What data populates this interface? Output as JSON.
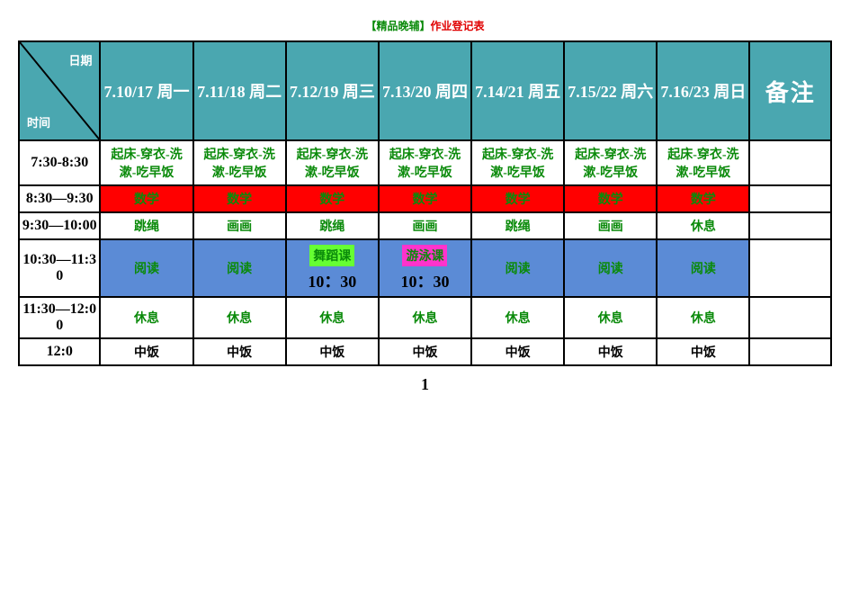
{
  "title_prefix": "【精品晚辅】",
  "title_suffix": "作业登记表",
  "title_prefix_color": "#0a8a0a",
  "title_suffix_color": "#e00000",
  "page_number": "1",
  "colors": {
    "header_bg": "#4aa7b0",
    "header_fg": "#ffffff",
    "border": "#000000",
    "green_text": "#0a8a0a",
    "red_bg": "#ff0000",
    "blue_bg": "#5b8bd6",
    "lime_bg": "#66ff33",
    "magenta_bg": "#ff33cc",
    "white": "#ffffff",
    "black": "#000000"
  },
  "corner": {
    "top": "日期",
    "bottom": "时间"
  },
  "day_headers": [
    "7.10/17 周一",
    "7.11/18 周二",
    "7.12/19 周三",
    "7.13/20 周四",
    "7.14/21 周五",
    "7.15/22 周六",
    "7.16/23 周日"
  ],
  "notes_header": "备注",
  "rows": [
    {
      "time": "7:30-8:30",
      "cells": [
        {
          "text": "起床-穿衣-洗漱-吃早饭",
          "bg": "#ffffff",
          "fg": "#0a8a0a"
        },
        {
          "text": "起床-穿衣-洗漱-吃早饭",
          "bg": "#ffffff",
          "fg": "#0a8a0a"
        },
        {
          "text": "起床-穿衣-洗漱-吃早饭",
          "bg": "#ffffff",
          "fg": "#0a8a0a"
        },
        {
          "text": "起床-穿衣-洗漱-吃早饭",
          "bg": "#ffffff",
          "fg": "#0a8a0a"
        },
        {
          "text": "起床-穿衣-洗漱-吃早饭",
          "bg": "#ffffff",
          "fg": "#0a8a0a"
        },
        {
          "text": "起床-穿衣-洗漱-吃早饭",
          "bg": "#ffffff",
          "fg": "#0a8a0a"
        },
        {
          "text": "起床-穿衣-洗漱-吃早饭",
          "bg": "#ffffff",
          "fg": "#0a8a0a"
        }
      ]
    },
    {
      "time": "8:30—9:30",
      "cells": [
        {
          "text": "数学",
          "bg": "#ff0000",
          "fg": "#0a8a0a"
        },
        {
          "text": "数学",
          "bg": "#ff0000",
          "fg": "#0a8a0a"
        },
        {
          "text": "数学",
          "bg": "#ff0000",
          "fg": "#0a8a0a"
        },
        {
          "text": "数学",
          "bg": "#ff0000",
          "fg": "#0a8a0a"
        },
        {
          "text": "数学",
          "bg": "#ff0000",
          "fg": "#0a8a0a"
        },
        {
          "text": "数学",
          "bg": "#ff0000",
          "fg": "#0a8a0a"
        },
        {
          "text": "数学",
          "bg": "#ff0000",
          "fg": "#0a8a0a"
        }
      ]
    },
    {
      "time": "9:30—10:00",
      "cells": [
        {
          "text": "跳绳",
          "bg": "#ffffff",
          "fg": "#0a8a0a"
        },
        {
          "text": "画画",
          "bg": "#ffffff",
          "fg": "#0a8a0a"
        },
        {
          "text": "跳绳",
          "bg": "#ffffff",
          "fg": "#0a8a0a"
        },
        {
          "text": "画画",
          "bg": "#ffffff",
          "fg": "#0a8a0a"
        },
        {
          "text": "跳绳",
          "bg": "#ffffff",
          "fg": "#0a8a0a"
        },
        {
          "text": "画画",
          "bg": "#ffffff",
          "fg": "#0a8a0a"
        },
        {
          "text": "休息",
          "bg": "#ffffff",
          "fg": "#0a8a0a"
        }
      ]
    },
    {
      "time": "10:30—11:30",
      "cells": [
        {
          "text": "阅读",
          "bg": "#5b8bd6",
          "fg": "#0a8a0a"
        },
        {
          "text": "阅读",
          "bg": "#5b8bd6",
          "fg": "#0a8a0a"
        },
        {
          "special": true,
          "bg": "#5b8bd6",
          "label": "舞蹈课",
          "label_bg": "#66ff33",
          "label_fg": "#0a8a0a",
          "time_text": "10：30"
        },
        {
          "special": true,
          "bg": "#5b8bd6",
          "label": "游泳课",
          "label_bg": "#ff33cc",
          "label_fg": "#0a8a0a",
          "time_text": "10：30"
        },
        {
          "text": "阅读",
          "bg": "#5b8bd6",
          "fg": "#0a8a0a"
        },
        {
          "text": "阅读",
          "bg": "#5b8bd6",
          "fg": "#0a8a0a"
        },
        {
          "text": "阅读",
          "bg": "#5b8bd6",
          "fg": "#0a8a0a"
        }
      ]
    },
    {
      "time": "11:30—12:00",
      "cells": [
        {
          "text": "休息",
          "bg": "#ffffff",
          "fg": "#0a8a0a"
        },
        {
          "text": "休息",
          "bg": "#ffffff",
          "fg": "#0a8a0a"
        },
        {
          "text": "休息",
          "bg": "#ffffff",
          "fg": "#0a8a0a"
        },
        {
          "text": "休息",
          "bg": "#ffffff",
          "fg": "#0a8a0a"
        },
        {
          "text": "休息",
          "bg": "#ffffff",
          "fg": "#0a8a0a"
        },
        {
          "text": "休息",
          "bg": "#ffffff",
          "fg": "#0a8a0a"
        },
        {
          "text": "休息",
          "bg": "#ffffff",
          "fg": "#0a8a0a"
        }
      ]
    },
    {
      "time": "12:0",
      "cells": [
        {
          "text": "中饭",
          "bg": "#ffffff",
          "fg": "#000000"
        },
        {
          "text": "中饭",
          "bg": "#ffffff",
          "fg": "#000000"
        },
        {
          "text": "中饭",
          "bg": "#ffffff",
          "fg": "#000000"
        },
        {
          "text": "中饭",
          "bg": "#ffffff",
          "fg": "#000000"
        },
        {
          "text": "中饭",
          "bg": "#ffffff",
          "fg": "#000000"
        },
        {
          "text": "中饭",
          "bg": "#ffffff",
          "fg": "#000000"
        },
        {
          "text": "中饭",
          "bg": "#ffffff",
          "fg": "#000000"
        }
      ]
    }
  ]
}
